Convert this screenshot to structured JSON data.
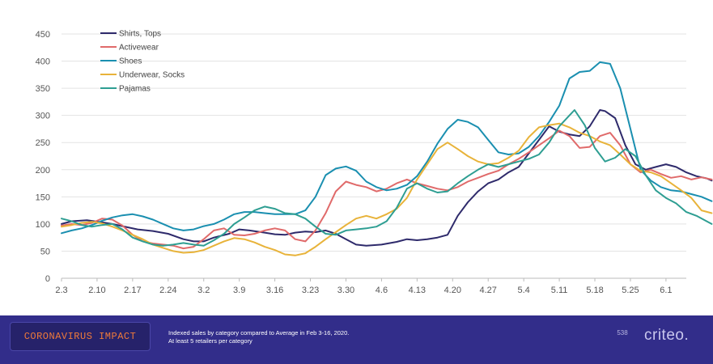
{
  "footer": {
    "badge": "CORONAVIRUS IMPACT",
    "caption_line1": "Indexed sales by category compared to Average in Feb 3-16, 2020.",
    "caption_line2": "At least 5 retailers per category",
    "page_number": "538",
    "logo": "criteo."
  },
  "chart_data": {
    "type": "line",
    "title": "",
    "xlabel": "",
    "ylabel": "",
    "ylim": [
      0,
      450
    ],
    "yticks": [
      0,
      50,
      100,
      150,
      200,
      250,
      300,
      350,
      400,
      450
    ],
    "xticks": [
      "2.3",
      "2.10",
      "2.17",
      "2.24",
      "3.2",
      "3.9",
      "3.16",
      "3.23",
      "3.30",
      "4.6",
      "4.13",
      "4.20",
      "4.27",
      "5.4",
      "5.11",
      "5.18",
      "5.25",
      "6.1"
    ],
    "x_start": "2.3",
    "x_end": "6.8",
    "grid": "horizontal",
    "legend_position": "top-left",
    "series": [
      {
        "name": "Shirts, Tops",
        "color": "#2e2a6b",
        "values": [
          [
            0,
            100
          ],
          [
            2,
            105
          ],
          [
            5,
            107
          ],
          [
            8,
            103
          ],
          [
            10,
            100
          ],
          [
            12,
            96
          ],
          [
            15,
            90
          ],
          [
            18,
            87
          ],
          [
            21,
            82
          ],
          [
            24,
            72
          ],
          [
            26,
            68
          ],
          [
            28,
            68
          ],
          [
            30,
            75
          ],
          [
            33,
            82
          ],
          [
            35,
            90
          ],
          [
            37,
            88
          ],
          [
            40,
            84
          ],
          [
            42,
            81
          ],
          [
            44,
            80
          ],
          [
            46,
            84
          ],
          [
            48,
            86
          ],
          [
            50,
            85
          ],
          [
            52,
            88
          ],
          [
            54,
            82
          ],
          [
            56,
            72
          ],
          [
            58,
            62
          ],
          [
            60,
            60
          ],
          [
            63,
            62
          ],
          [
            66,
            67
          ],
          [
            68,
            72
          ],
          [
            70,
            70
          ],
          [
            72,
            72
          ],
          [
            74,
            75
          ],
          [
            76,
            80
          ],
          [
            78,
            115
          ],
          [
            80,
            140
          ],
          [
            82,
            160
          ],
          [
            84,
            175
          ],
          [
            86,
            182
          ],
          [
            88,
            195
          ],
          [
            90,
            205
          ],
          [
            92,
            230
          ],
          [
            94,
            255
          ],
          [
            96,
            280
          ],
          [
            98,
            270
          ],
          [
            100,
            265
          ],
          [
            102,
            262
          ],
          [
            104,
            280
          ],
          [
            106,
            310
          ],
          [
            107,
            308
          ],
          [
            109,
            295
          ],
          [
            111,
            245
          ],
          [
            113,
            210
          ],
          [
            115,
            200
          ],
          [
            117,
            205
          ],
          [
            119,
            210
          ],
          [
            121,
            205
          ],
          [
            123,
            195
          ],
          [
            125,
            188
          ],
          [
            127,
            184
          ],
          [
            128,
            180
          ]
        ]
      },
      {
        "name": "Activewear",
        "color": "#e06a6a",
        "values": [
          [
            0,
            97
          ],
          [
            2,
            100
          ],
          [
            4,
            98
          ],
          [
            6,
            102
          ],
          [
            8,
            110
          ],
          [
            10,
            108
          ],
          [
            12,
            97
          ],
          [
            14,
            80
          ],
          [
            16,
            68
          ],
          [
            18,
            64
          ],
          [
            20,
            62
          ],
          [
            22,
            60
          ],
          [
            24,
            55
          ],
          [
            26,
            58
          ],
          [
            28,
            72
          ],
          [
            30,
            88
          ],
          [
            32,
            92
          ],
          [
            34,
            80
          ],
          [
            36,
            79
          ],
          [
            38,
            82
          ],
          [
            40,
            88
          ],
          [
            42,
            92
          ],
          [
            44,
            88
          ],
          [
            46,
            72
          ],
          [
            48,
            68
          ],
          [
            50,
            88
          ],
          [
            52,
            120
          ],
          [
            54,
            160
          ],
          [
            56,
            178
          ],
          [
            58,
            172
          ],
          [
            60,
            168
          ],
          [
            62,
            160
          ],
          [
            64,
            165
          ],
          [
            66,
            175
          ],
          [
            68,
            182
          ],
          [
            70,
            175
          ],
          [
            72,
            170
          ],
          [
            74,
            165
          ],
          [
            76,
            162
          ],
          [
            78,
            168
          ],
          [
            80,
            178
          ],
          [
            82,
            185
          ],
          [
            84,
            192
          ],
          [
            86,
            198
          ],
          [
            88,
            210
          ],
          [
            90,
            220
          ],
          [
            92,
            232
          ],
          [
            94,
            245
          ],
          [
            96,
            258
          ],
          [
            98,
            272
          ],
          [
            100,
            262
          ],
          [
            102,
            240
          ],
          [
            104,
            242
          ],
          [
            106,
            262
          ],
          [
            108,
            268
          ],
          [
            110,
            245
          ],
          [
            112,
            210
          ],
          [
            114,
            195
          ],
          [
            116,
            200
          ],
          [
            118,
            192
          ],
          [
            120,
            185
          ],
          [
            122,
            188
          ],
          [
            124,
            182
          ],
          [
            126,
            186
          ],
          [
            128,
            182
          ]
        ]
      },
      {
        "name": "Shoes",
        "color": "#1a8fb0",
        "values": [
          [
            0,
            83
          ],
          [
            2,
            88
          ],
          [
            4,
            92
          ],
          [
            6,
            98
          ],
          [
            8,
            106
          ],
          [
            10,
            112
          ],
          [
            12,
            116
          ],
          [
            14,
            118
          ],
          [
            16,
            114
          ],
          [
            18,
            108
          ],
          [
            20,
            100
          ],
          [
            22,
            92
          ],
          [
            24,
            88
          ],
          [
            26,
            90
          ],
          [
            28,
            96
          ],
          [
            30,
            100
          ],
          [
            32,
            108
          ],
          [
            34,
            118
          ],
          [
            36,
            122
          ],
          [
            38,
            122
          ],
          [
            40,
            120
          ],
          [
            42,
            118
          ],
          [
            44,
            118
          ],
          [
            46,
            118
          ],
          [
            48,
            125
          ],
          [
            50,
            150
          ],
          [
            52,
            190
          ],
          [
            54,
            202
          ],
          [
            56,
            206
          ],
          [
            58,
            198
          ],
          [
            60,
            178
          ],
          [
            62,
            168
          ],
          [
            64,
            162
          ],
          [
            66,
            165
          ],
          [
            68,
            172
          ],
          [
            70,
            188
          ],
          [
            72,
            215
          ],
          [
            74,
            248
          ],
          [
            76,
            275
          ],
          [
            78,
            292
          ],
          [
            80,
            288
          ],
          [
            82,
            278
          ],
          [
            84,
            255
          ],
          [
            86,
            232
          ],
          [
            88,
            228
          ],
          [
            90,
            230
          ],
          [
            92,
            242
          ],
          [
            94,
            262
          ],
          [
            96,
            288
          ],
          [
            98,
            318
          ],
          [
            100,
            368
          ],
          [
            102,
            380
          ],
          [
            104,
            382
          ],
          [
            106,
            398
          ],
          [
            108,
            395
          ],
          [
            110,
            350
          ],
          [
            112,
            275
          ],
          [
            114,
            200
          ],
          [
            116,
            180
          ],
          [
            118,
            168
          ],
          [
            120,
            162
          ],
          [
            122,
            160
          ],
          [
            124,
            155
          ],
          [
            126,
            150
          ],
          [
            128,
            142
          ]
        ]
      },
      {
        "name": "Underwear, Socks",
        "color": "#e8b33a",
        "values": [
          [
            0,
            95
          ],
          [
            2,
            98
          ],
          [
            4,
            102
          ],
          [
            6,
            104
          ],
          [
            8,
            101
          ],
          [
            10,
            95
          ],
          [
            12,
            88
          ],
          [
            14,
            80
          ],
          [
            16,
            72
          ],
          [
            18,
            62
          ],
          [
            20,
            56
          ],
          [
            22,
            50
          ],
          [
            24,
            47
          ],
          [
            26,
            48
          ],
          [
            28,
            52
          ],
          [
            30,
            60
          ],
          [
            32,
            68
          ],
          [
            34,
            74
          ],
          [
            36,
            72
          ],
          [
            38,
            66
          ],
          [
            40,
            58
          ],
          [
            42,
            52
          ],
          [
            44,
            44
          ],
          [
            46,
            42
          ],
          [
            48,
            46
          ],
          [
            50,
            58
          ],
          [
            52,
            72
          ],
          [
            54,
            85
          ],
          [
            56,
            98
          ],
          [
            58,
            110
          ],
          [
            60,
            115
          ],
          [
            62,
            110
          ],
          [
            64,
            118
          ],
          [
            66,
            128
          ],
          [
            68,
            148
          ],
          [
            70,
            182
          ],
          [
            72,
            210
          ],
          [
            74,
            238
          ],
          [
            76,
            250
          ],
          [
            78,
            238
          ],
          [
            80,
            225
          ],
          [
            82,
            215
          ],
          [
            84,
            210
          ],
          [
            86,
            212
          ],
          [
            88,
            222
          ],
          [
            90,
            235
          ],
          [
            92,
            260
          ],
          [
            94,
            278
          ],
          [
            96,
            282
          ],
          [
            98,
            285
          ],
          [
            100,
            278
          ],
          [
            102,
            268
          ],
          [
            104,
            262
          ],
          [
            106,
            252
          ],
          [
            108,
            245
          ],
          [
            110,
            228
          ],
          [
            112,
            210
          ],
          [
            114,
            198
          ],
          [
            116,
            195
          ],
          [
            118,
            188
          ],
          [
            120,
            175
          ],
          [
            122,
            162
          ],
          [
            124,
            148
          ],
          [
            126,
            125
          ],
          [
            128,
            120
          ]
        ]
      },
      {
        "name": "Pajamas",
        "color": "#2e9e92",
        "values": [
          [
            0,
            110
          ],
          [
            2,
            105
          ],
          [
            4,
            98
          ],
          [
            6,
            95
          ],
          [
            8,
            98
          ],
          [
            10,
            100
          ],
          [
            12,
            90
          ],
          [
            14,
            75
          ],
          [
            16,
            68
          ],
          [
            18,
            62
          ],
          [
            20,
            60
          ],
          [
            22,
            62
          ],
          [
            24,
            65
          ],
          [
            26,
            62
          ],
          [
            28,
            60
          ],
          [
            30,
            70
          ],
          [
            32,
            82
          ],
          [
            34,
            100
          ],
          [
            36,
            112
          ],
          [
            38,
            125
          ],
          [
            40,
            132
          ],
          [
            42,
            128
          ],
          [
            44,
            120
          ],
          [
            46,
            118
          ],
          [
            48,
            110
          ],
          [
            50,
            95
          ],
          [
            52,
            82
          ],
          [
            54,
            80
          ],
          [
            56,
            88
          ],
          [
            58,
            90
          ],
          [
            60,
            92
          ],
          [
            62,
            95
          ],
          [
            64,
            105
          ],
          [
            66,
            130
          ],
          [
            68,
            165
          ],
          [
            70,
            175
          ],
          [
            72,
            165
          ],
          [
            74,
            158
          ],
          [
            76,
            160
          ],
          [
            78,
            175
          ],
          [
            80,
            188
          ],
          [
            82,
            200
          ],
          [
            84,
            210
          ],
          [
            86,
            205
          ],
          [
            88,
            210
          ],
          [
            90,
            215
          ],
          [
            92,
            220
          ],
          [
            94,
            228
          ],
          [
            96,
            250
          ],
          [
            98,
            280
          ],
          [
            100,
            300
          ],
          [
            101,
            310
          ],
          [
            103,
            282
          ],
          [
            105,
            240
          ],
          [
            107,
            215
          ],
          [
            109,
            222
          ],
          [
            111,
            238
          ],
          [
            113,
            225
          ],
          [
            115,
            190
          ],
          [
            117,
            162
          ],
          [
            119,
            148
          ],
          [
            121,
            138
          ],
          [
            123,
            122
          ],
          [
            125,
            115
          ],
          [
            127,
            105
          ],
          [
            128,
            100
          ]
        ]
      }
    ]
  }
}
